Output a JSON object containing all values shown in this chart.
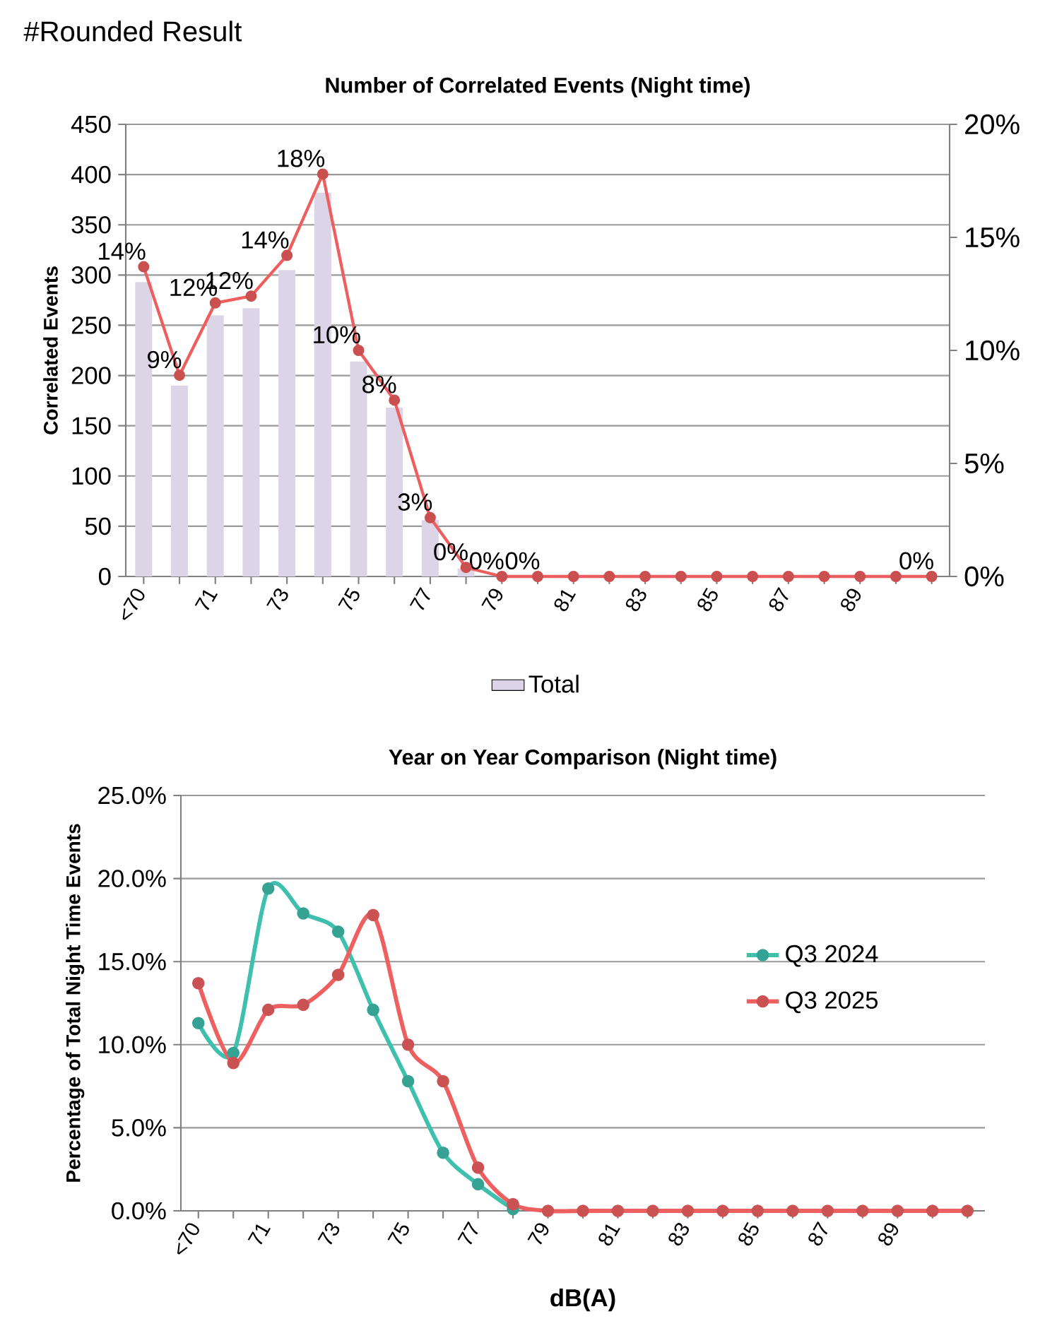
{
  "chart_data": [
    {
      "type": "bar",
      "title": "Number of Correlated Events (Night time)",
      "ylabel": "Correlated Events",
      "annotations": [
        "#Rounded Result"
      ],
      "categories": [
        "<70",
        null,
        "71",
        null,
        "73",
        null,
        "75",
        null,
        "77",
        null,
        "79",
        null,
        "81",
        null,
        "83",
        null,
        "85",
        null,
        "87",
        null,
        "89",
        null,
        null
      ],
      "series": [
        {
          "name": "Total",
          "type": "bar",
          "color": "#dcd5e8",
          "values": [
            293,
            190,
            260,
            267,
            305,
            382,
            214,
            168,
            56,
            8,
            0,
            0,
            0,
            0,
            0,
            0,
            0,
            0,
            0,
            0,
            0,
            0,
            0
          ]
        },
        {
          "type": "line",
          "axis": "y2",
          "color": "#ee5e5e",
          "values": [
            13.7,
            8.9,
            12.1,
            12.4,
            14.2,
            17.8,
            10.0,
            7.8,
            2.6,
            0.4,
            0,
            0,
            0,
            0,
            0,
            0,
            0,
            0,
            0,
            0,
            0,
            0,
            0
          ],
          "value_labels": [
            "14%",
            "9%",
            "12%",
            "12%",
            "14%",
            "18%",
            "10%",
            "8%",
            "3%",
            "0%",
            "0%",
            "0%",
            null,
            null,
            null,
            null,
            null,
            null,
            null,
            null,
            null,
            null,
            "0%"
          ]
        }
      ],
      "ylim": [
        0,
        450
      ],
      "yticks": [
        0,
        50,
        100,
        150,
        200,
        250,
        300,
        350,
        400,
        450
      ],
      "y2lim": [
        0,
        20
      ],
      "y2ticks": [
        {
          "value": 0,
          "label": "0%"
        },
        {
          "value": 5,
          "label": "5%"
        },
        {
          "value": 10,
          "label": "10%"
        },
        {
          "value": 15,
          "label": "15%"
        },
        {
          "value": 20,
          "label": "20%"
        }
      ],
      "grid": "y",
      "legend": "bottom",
      "marker": "circle"
    },
    {
      "type": "line",
      "title": "Year on Year Comparison (Night time)",
      "xlabel": "dB(A)",
      "ylabel": "Percentage of Total Night Time Events",
      "categories": [
        "<70",
        null,
        "71",
        null,
        "73",
        null,
        "75",
        null,
        "77",
        null,
        "79",
        null,
        "81",
        null,
        "83",
        null,
        "85",
        null,
        "87",
        null,
        "89",
        null,
        null
      ],
      "series": [
        {
          "name": "Q3 2024",
          "color": "#3fbfad",
          "values": [
            11.3,
            9.5,
            19.4,
            17.9,
            16.8,
            12.1,
            7.8,
            3.5,
            1.6,
            0.1,
            null,
            null,
            null,
            null,
            null,
            null,
            null,
            null,
            null,
            null,
            null,
            null,
            null
          ]
        },
        {
          "name": "Q3 2025",
          "color": "#ee6060",
          "values": [
            13.7,
            8.9,
            12.1,
            12.4,
            14.2,
            17.8,
            10.0,
            7.8,
            2.6,
            0.4,
            0,
            0,
            0,
            0,
            0,
            0,
            0,
            0,
            0,
            0,
            0,
            0,
            0
          ]
        }
      ],
      "ylim": [
        0,
        25
      ],
      "yticks": [
        {
          "value": 0,
          "label": "0.0%"
        },
        {
          "value": 5,
          "label": "5.0%"
        },
        {
          "value": 10,
          "label": "10.0%"
        },
        {
          "value": 15,
          "label": "15.0%"
        },
        {
          "value": 20,
          "label": "20.0%"
        },
        {
          "value": 25,
          "label": "25.0%"
        }
      ],
      "grid": "y",
      "legend": "right",
      "marker": "circle"
    }
  ]
}
